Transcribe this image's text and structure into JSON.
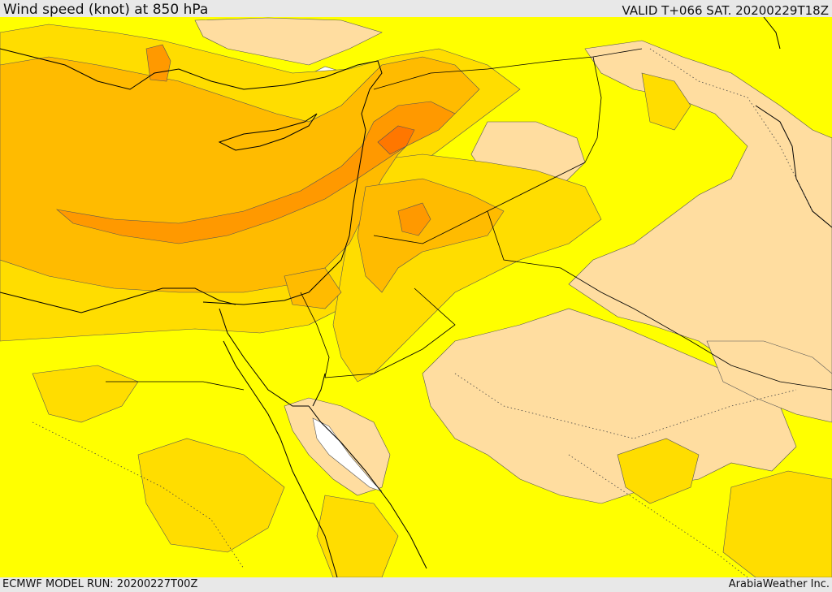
{
  "header": {
    "title": "Wind speed (knot) at 850 hPa",
    "valid": "VALID T+066 SAT. 20200229T18Z"
  },
  "footer": {
    "model_run": "ECMWF MODEL RUN: 20200227T00Z",
    "credit": "ArabiaWeather Inc."
  },
  "colors": {
    "band_lowest": "#ffffff",
    "band_low": "#ffdda0",
    "band_mid": "#ffff00",
    "band_moderate": "#ffdd00",
    "band_strong": "#ffbb00",
    "band_stronger": "#ff9900",
    "band_strongest": "#ff7700"
  }
}
